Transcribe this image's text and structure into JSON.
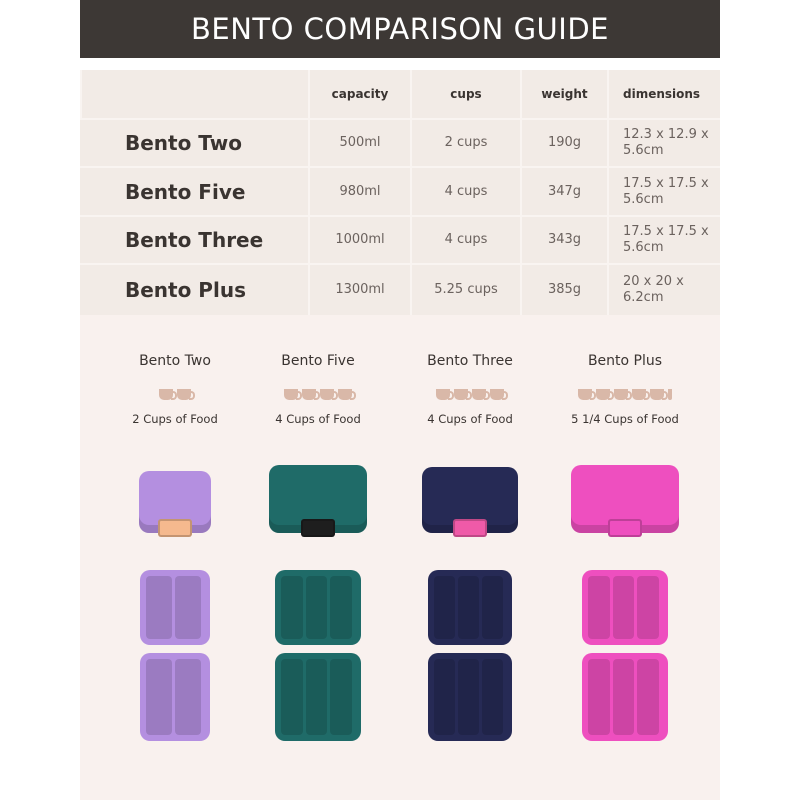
{
  "title": "BENTO COMPARISON GUIDE",
  "table": {
    "headers": [
      "capacity",
      "cups",
      "weight",
      "dimensions"
    ],
    "rows": [
      {
        "name": "Bento Two",
        "capacity": "500ml",
        "cups": "2 cups",
        "weight": "190g",
        "dimensions": "12.3 x 12.9 x 5.6cm"
      },
      {
        "name": "Bento Five",
        "capacity": "980ml",
        "cups": "4 cups",
        "weight": "347g",
        "dimensions": "17.5 x 17.5 x 5.6cm"
      },
      {
        "name": "Bento Three",
        "capacity": "1000ml",
        "cups": "4 cups",
        "weight": "343g",
        "dimensions": "17.5 x 17.5 x 5.6cm"
      },
      {
        "name": "Bento Plus",
        "capacity": "1300ml",
        "cups": "5.25 cups",
        "weight": "385g",
        "dimensions": "20 x 20 x 6.2cm"
      }
    ]
  },
  "products": [
    {
      "name": "Bento Two",
      "cups": 2,
      "cups_label": "2 Cups of Food",
      "color": "#b48fe0",
      "clasp": "#f5b98e"
    },
    {
      "name": "Bento Five",
      "cups": 4,
      "cups_label": "4 Cups of Food",
      "color": "#1f6b68",
      "clasp": "#1e1e1e"
    },
    {
      "name": "Bento Three",
      "cups": 4,
      "cups_label": "4 Cups of Food",
      "color": "#262a55",
      "clasp": "#ef5aa8"
    },
    {
      "name": "Bento Plus",
      "cups": 5.25,
      "cups_label": "5 1/4 Cups of Food",
      "color": "#ee4fbf",
      "clasp": "#ee4fbf"
    }
  ],
  "icons": {
    "cup": "coffee-cup-icon"
  }
}
